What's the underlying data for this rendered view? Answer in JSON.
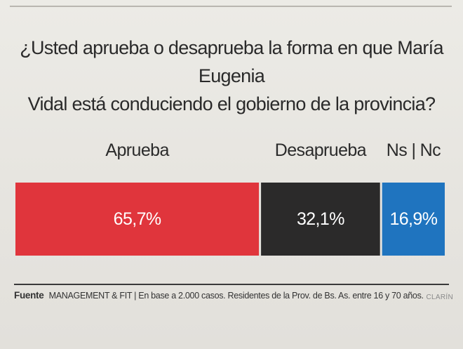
{
  "chart_data": {
    "type": "bar",
    "orientation": "horizontal-stacked",
    "title": "¿Usted aprueba o desaprueba la forma en que María Eugenia Vidal está conduciendo el gobierno de la provincia?",
    "title_lines": [
      "¿Usted aprueba o desaprueba la forma en que María Eugenia",
      "Vidal está conduciendo el gobierno de la provincia?"
    ],
    "categories": [
      "Aprueba",
      "Desaprueba",
      "Ns | Nc"
    ],
    "values": [
      65.7,
      32.1,
      16.9
    ],
    "value_labels": [
      "65,7%",
      "32,1%",
      "16,9%"
    ],
    "colors": [
      "#e0353c",
      "#2b2a2a",
      "#1f74bf"
    ],
    "legend": "above-bars",
    "grid": false
  },
  "footer": {
    "source_label": "Fuente",
    "source_text": "MANAGEMENT & FIT | En base a 2.000 casos. Residentes de la Prov. de Bs. As. entre 16 y 70 años.",
    "brand": "CLARÍN"
  }
}
